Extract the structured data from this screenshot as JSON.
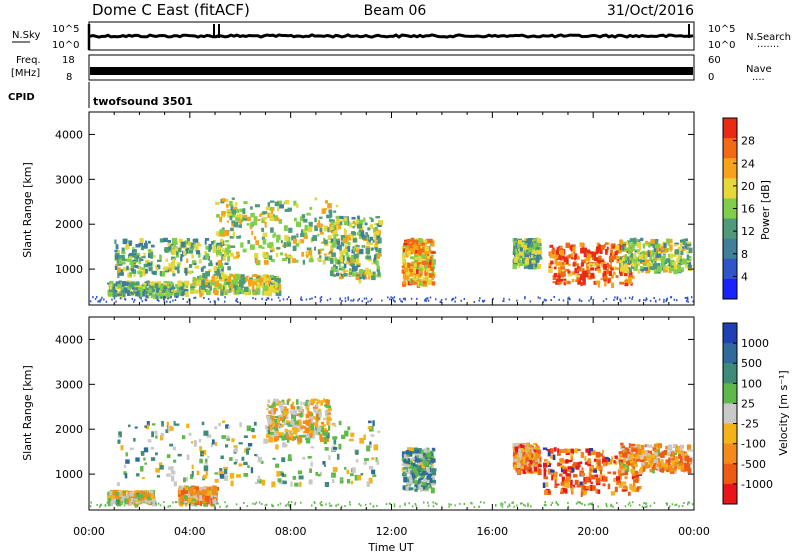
{
  "header": {
    "station": "Dome C East (fitACF)",
    "beam": "Beam 06",
    "date": "31/Oct/2016"
  },
  "top_panels": {
    "nsky_label": "N.Sky",
    "nsky_ticks": [
      "10^5",
      "10^0"
    ],
    "nsearch_label": "N.Search",
    "nsearch_dots": "·······",
    "nsearch_ticks": [
      "10^5",
      "10^0"
    ],
    "freq_label_line1": "Freq.",
    "freq_label_line2": "[MHz]",
    "freq_ticks": [
      "18",
      "8"
    ],
    "nave_label": "Nave",
    "nave_dots": "····",
    "nave_ticks": [
      "60",
      "0"
    ],
    "cpid_label": "CPID",
    "cpid_text": "twofsound 3501"
  },
  "chart_data": [
    {
      "type": "heatmap",
      "name": "power",
      "ylabel": "Slant Range [km]",
      "yticks": [
        "4000",
        "3000",
        "2000",
        "1000"
      ],
      "ylim": [
        200,
        4500
      ],
      "xlim": [
        0,
        24
      ],
      "colorbar": {
        "label": "Power [dB]",
        "ticks": [
          "28",
          "24",
          "20",
          "16",
          "12",
          "8",
          "4"
        ],
        "colors": [
          "#1a22ff",
          "#2f54c8",
          "#3f7f9a",
          "#4f9a7a",
          "#7fcf4a",
          "#e6d83a",
          "#f7a21a",
          "#f26a14",
          "#e92b14"
        ]
      },
      "regions": [
        {
          "t": [
            0.7,
            3.8
          ],
          "r": [
            450,
            750
          ],
          "level": 0.45
        },
        {
          "t": [
            4.0,
            7.5
          ],
          "r": [
            500,
            900
          ],
          "level": 0.55
        },
        {
          "t": [
            1.0,
            5.5
          ],
          "r": [
            900,
            1700
          ],
          "level": 0.45
        },
        {
          "t": [
            5.0,
            9.8
          ],
          "r": [
            1200,
            2600
          ],
          "level": 0.55
        },
        {
          "t": [
            9.5,
            11.5
          ],
          "r": [
            800,
            2200
          ],
          "level": 0.5
        },
        {
          "t": [
            12.4,
            13.6
          ],
          "r": [
            700,
            1700
          ],
          "level": 0.7
        },
        {
          "t": [
            16.8,
            17.8
          ],
          "r": [
            1100,
            1700
          ],
          "level": 0.45
        },
        {
          "t": [
            18.2,
            21.5
          ],
          "r": [
            700,
            1600
          ],
          "level": 0.85
        },
        {
          "t": [
            21.0,
            23.8
          ],
          "r": [
            1000,
            1700
          ],
          "level": 0.5
        }
      ]
    },
    {
      "type": "heatmap",
      "name": "velocity",
      "ylabel": "Slant Range [km]",
      "yticks": [
        "4000",
        "3000",
        "2000",
        "1000"
      ],
      "ylim": [
        200,
        4500
      ],
      "xlim": [
        0,
        24
      ],
      "xticks": [
        "00:00",
        "04:00",
        "08:00",
        "12:00",
        "16:00",
        "20:00",
        "00:00"
      ],
      "xlabel": "Time UT",
      "colorbar": {
        "label": "Velocity [m s⁻¹]",
        "ticks": [
          "1000",
          "500",
          "100",
          "25",
          "-25",
          "-100",
          "-500",
          "-1000"
        ],
        "colors": [
          "#1f3fb5",
          "#2f6a9a",
          "#3f8a78",
          "#5fb84a",
          "#c9c9c9",
          "#f4b21a",
          "#f38a1a",
          "#ee5a14",
          "#e8161a"
        ]
      },
      "regions": [
        {
          "t": [
            0.7,
            2.5
          ],
          "r": [
            400,
            650
          ],
          "level": 0.45
        },
        {
          "t": [
            3.5,
            5.0
          ],
          "r": [
            400,
            750
          ],
          "level": 0.35
        },
        {
          "t": [
            1.0,
            11.5
          ],
          "r": [
            800,
            2200
          ],
          "level": 0.6
        },
        {
          "t": [
            7.0,
            9.5
          ],
          "r": [
            1800,
            2700
          ],
          "level": 0.45
        },
        {
          "t": [
            12.4,
            13.6
          ],
          "r": [
            700,
            1600
          ],
          "level": 0.65
        },
        {
          "t": [
            16.8,
            17.8
          ],
          "r": [
            1100,
            1700
          ],
          "level": 0.3
        },
        {
          "t": [
            18.0,
            21.8
          ],
          "r": [
            600,
            1600
          ],
          "level": 0.2
        },
        {
          "t": [
            21.0,
            23.8
          ],
          "r": [
            1100,
            1700
          ],
          "level": 0.35
        }
      ]
    }
  ]
}
